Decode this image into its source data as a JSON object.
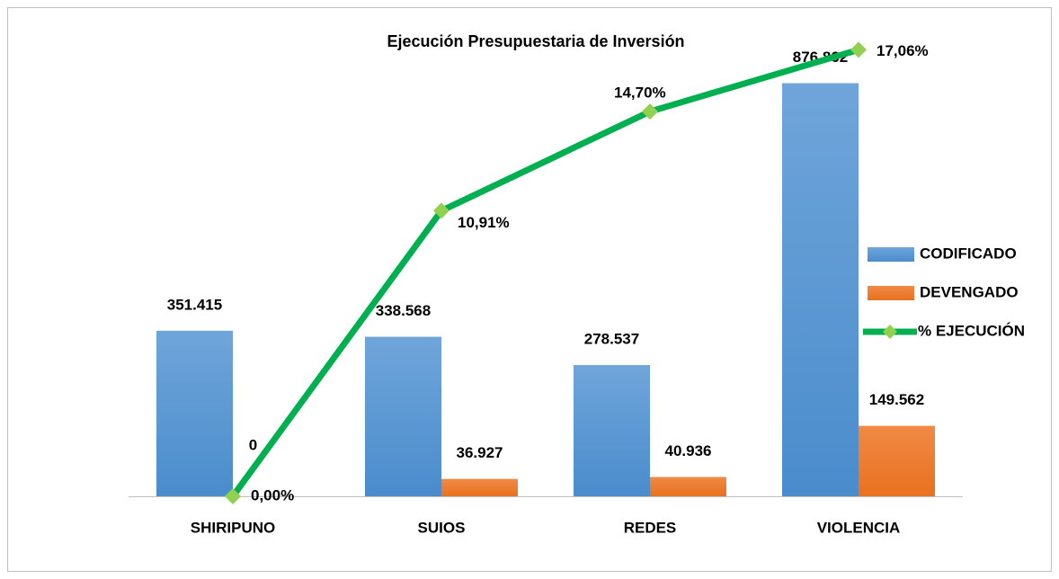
{
  "chart_data": {
    "type": "bar_line",
    "title": "Ejecución Presupuestaria de Inversión",
    "categories": [
      "SHIRIPUNO",
      "SUIOS",
      "REDES",
      "VIOLENCIA"
    ],
    "series": [
      {
        "name": "CODIFICADO",
        "type": "bar",
        "color": "#5b9bd5",
        "values": [
          351415,
          338568,
          278537,
          876862
        ],
        "value_labels": [
          "351.415",
          "338.568",
          "278.537",
          "876.862"
        ]
      },
      {
        "name": "DEVENGADO",
        "type": "bar",
        "color": "#ed7d31",
        "values": [
          0,
          36927,
          40936,
          149562
        ],
        "value_labels": [
          "0",
          "36.927",
          "40.936",
          "149.562"
        ]
      },
      {
        "name": "% EJECUCIÓN",
        "type": "line",
        "axis": "y2",
        "color": "#00b050",
        "marker_color": "#92d050",
        "values": [
          0,
          10.91,
          14.7,
          17.06
        ],
        "value_labels": [
          "0,00%",
          "10,91%",
          "14,70%",
          "17,06%"
        ]
      }
    ],
    "ylim": [
      0,
      1000000
    ],
    "y2lim": [
      0,
      18
    ],
    "legend": "right"
  }
}
